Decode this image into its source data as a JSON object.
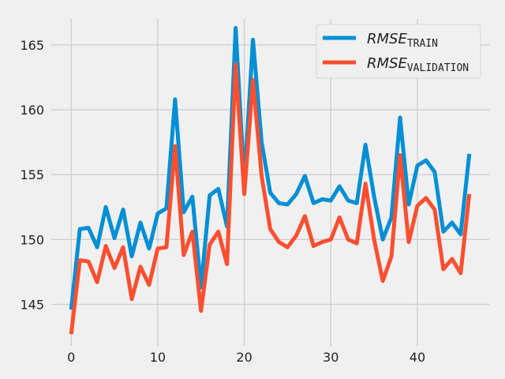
{
  "chart_data": {
    "type": "line",
    "title": "",
    "xlabel": "",
    "ylabel": "",
    "xlim": [
      -2.3,
      48.3
    ],
    "ylim": [
      141.8,
      167.0
    ],
    "xticks": [
      0,
      10,
      20,
      30,
      40
    ],
    "yticks": [
      145,
      150,
      155,
      160,
      165
    ],
    "grid": true,
    "legend_position": "top-right",
    "x": [
      0,
      1,
      2,
      3,
      4,
      5,
      6,
      7,
      8,
      9,
      10,
      11,
      12,
      13,
      14,
      15,
      16,
      17,
      18,
      19,
      20,
      21,
      22,
      23,
      24,
      25,
      26,
      27,
      28,
      29,
      30,
      31,
      32,
      33,
      34,
      35,
      36,
      37,
      38,
      39,
      40,
      41,
      42,
      43,
      44,
      45,
      46
    ],
    "series": [
      {
        "name": "RMSE_TRAIN",
        "label_main": "RMSE",
        "label_sub": "TRAIN",
        "color": "#008fd5",
        "values": [
          144.6,
          150.8,
          150.9,
          149.4,
          152.5,
          150.1,
          152.3,
          148.7,
          151.3,
          149.3,
          152.0,
          152.4,
          160.8,
          152.1,
          153.3,
          146.3,
          153.4,
          153.9,
          151.0,
          166.3,
          154.3,
          165.4,
          157.5,
          153.6,
          152.8,
          152.7,
          153.5,
          154.9,
          152.8,
          153.1,
          153.0,
          154.1,
          153.0,
          152.8,
          157.3,
          153.3,
          150.0,
          151.7,
          159.4,
          152.7,
          155.7,
          156.1,
          155.2,
          150.6,
          151.3,
          150.4,
          156.6
        ]
      },
      {
        "name": "RMSE_VALIDATION",
        "label_main": "RMSE",
        "label_sub": "VALIDATION",
        "color": "#fc4f30",
        "values": [
          142.7,
          148.4,
          148.3,
          146.7,
          149.5,
          147.8,
          149.4,
          145.4,
          147.9,
          146.5,
          149.3,
          149.4,
          157.2,
          148.8,
          150.6,
          144.5,
          149.6,
          150.6,
          148.1,
          163.5,
          153.5,
          162.3,
          154.9,
          150.8,
          149.8,
          149.4,
          150.3,
          151.8,
          149.5,
          149.8,
          150.0,
          151.7,
          150.0,
          149.7,
          154.3,
          150.0,
          146.8,
          148.7,
          156.5,
          149.8,
          152.6,
          153.2,
          152.3,
          147.7,
          148.5,
          147.4,
          153.5
        ]
      }
    ]
  }
}
